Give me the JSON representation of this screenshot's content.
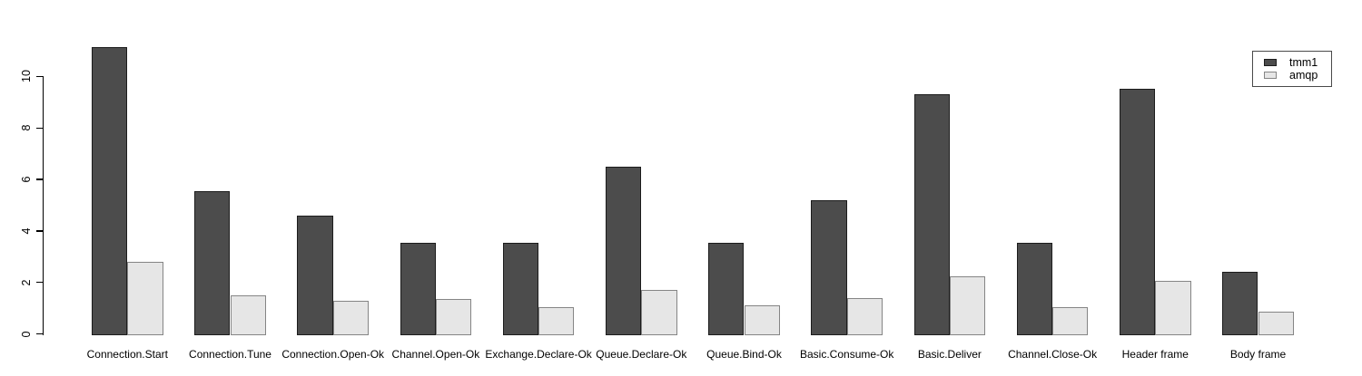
{
  "figure": {
    "background": "#ffffff",
    "text_color": "#000000",
    "axis_color": "#000000"
  },
  "chart_data": {
    "type": "bar",
    "title": "",
    "xlabel": "",
    "ylabel": "",
    "categories": [
      "Connection.Start",
      "Connection.Tune",
      "Connection.Open-Ok",
      "Channel.Open-Ok",
      "Exchange.Declare-Ok",
      "Queue.Declare-Ok",
      "Queue.Bind-Ok",
      "Basic.Consume-Ok",
      "Basic.Deliver",
      "Channel.Close-Ok",
      "Header frame",
      "Body frame"
    ],
    "series": [
      {
        "name": "tmm1",
        "fill": "#4c4c4c",
        "border": "#1c1c1c",
        "values": [
          11.2,
          5.6,
          4.65,
          3.6,
          3.6,
          6.55,
          3.6,
          5.25,
          9.35,
          3.6,
          9.55,
          2.45
        ]
      },
      {
        "name": "amqp",
        "fill": "#e6e6e6",
        "border": "#858585",
        "values": [
          2.85,
          1.55,
          1.35,
          1.4,
          1.1,
          1.75,
          1.15,
          1.45,
          2.3,
          1.1,
          2.1,
          0.9
        ]
      }
    ],
    "ylim": [
      0,
      11.2
    ],
    "yticks": [
      0,
      2,
      4,
      6,
      8,
      10
    ],
    "grid": false,
    "legend_position": "top-right"
  }
}
